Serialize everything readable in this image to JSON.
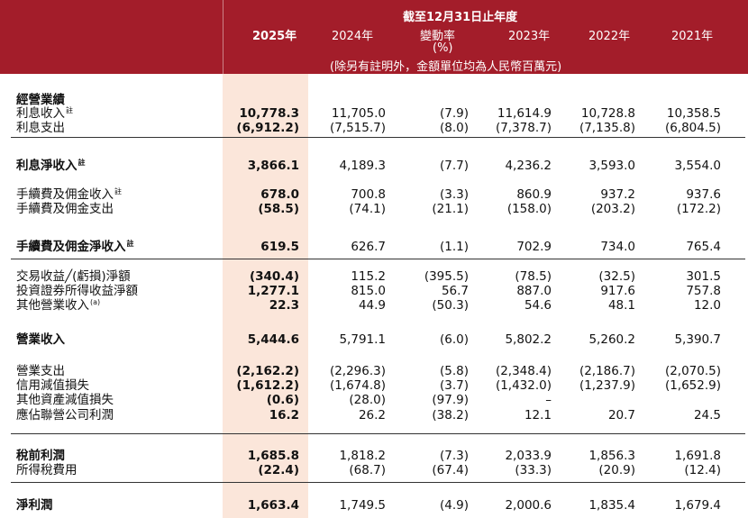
{
  "header": {
    "period_title": "截至12月31日止年度",
    "years": [
      "2025年",
      "2024年",
      "變動率",
      "2023年",
      "2022年",
      "2021年"
    ],
    "change_unit": "(%)",
    "note": "(除另有註明外，金額單位均為人民幣百萬元)"
  },
  "sections": [
    {
      "label": "經營業績",
      "bold": true,
      "header_only": true,
      "values": []
    },
    {
      "label": "利息收入",
      "note": "註",
      "bold": false,
      "values": [
        "10,778.3",
        "11,705.0",
        "(7.9)",
        "11,614.9",
        "10,728.8",
        "10,358.5"
      ]
    },
    {
      "label": "利息支出",
      "bold": false,
      "values": [
        "(6,912.2)",
        "(7,515.7)",
        "(8.0)",
        "(7,378.7)",
        "(7,135.8)",
        "(6,804.5)"
      ]
    },
    {
      "label": "利息淨收入",
      "note": "註",
      "bold": true,
      "values": [
        "3,866.1",
        "4,189.3",
        "(7.7)",
        "4,236.2",
        "3,593.0",
        "3,554.0"
      ]
    },
    {
      "label": "手續費及佣金收入",
      "note": "註",
      "bold": false,
      "values": [
        "678.0",
        "700.8",
        "(3.3)",
        "860.9",
        "937.2",
        "937.6"
      ]
    },
    {
      "label": "手續費及佣金支出",
      "bold": false,
      "values": [
        "(58.5)",
        "(74.1)",
        "(21.1)",
        "(158.0)",
        "(203.2)",
        "(172.2)"
      ]
    },
    {
      "label": "手續費及佣金淨收入",
      "note": "註",
      "bold": true,
      "values": [
        "619.5",
        "626.7",
        "(1.1)",
        "702.9",
        "734.0",
        "765.4"
      ]
    },
    {
      "label": "交易收益╱(虧損)淨額",
      "bold": false,
      "values": [
        "(340.4)",
        "115.2",
        "(395.5)",
        "(78.5)",
        "(32.5)",
        "301.5"
      ]
    },
    {
      "label": "投資證券所得收益淨額",
      "bold": false,
      "values": [
        "1,277.1",
        "815.0",
        "56.7",
        "887.0",
        "917.6",
        "757.8"
      ]
    },
    {
      "label": "其他營業收入",
      "note": "(a)",
      "bold": false,
      "values": [
        "22.3",
        "44.9",
        "(50.3)",
        "54.6",
        "48.1",
        "12.0"
      ]
    },
    {
      "label": "營業收入",
      "bold": true,
      "values": [
        "5,444.6",
        "5,791.1",
        "(6.0)",
        "5,802.2",
        "5,260.2",
        "5,390.7"
      ]
    },
    {
      "label": "營業支出",
      "bold": false,
      "values": [
        "(2,162.2)",
        "(2,296.3)",
        "(5.8)",
        "(2,348.4)",
        "(2,186.7)",
        "(2,070.5)"
      ]
    },
    {
      "label": "信用減值損失",
      "bold": false,
      "values": [
        "(1,612.2)",
        "(1,674.8)",
        "(3.7)",
        "(1,432.0)",
        "(1,237.9)",
        "(1,652.9)"
      ]
    },
    {
      "label": "其他資產減值損失",
      "bold": false,
      "values": [
        "(0.6)",
        "(28.0)",
        "(97.9)",
        "–",
        "",
        ""
      ]
    },
    {
      "label": "應佔聯營公司利潤",
      "bold": false,
      "values": [
        "16.2",
        "26.2",
        "(38.2)",
        "12.1",
        "20.7",
        "24.5"
      ]
    },
    {
      "label": "稅前利潤",
      "bold": true,
      "values": [
        "1,685.8",
        "1,818.2",
        "(7.3)",
        "2,033.9",
        "1,856.3",
        "1,691.8"
      ]
    },
    {
      "label": "所得稅費用",
      "bold": false,
      "values": [
        "(22.4)",
        "(68.7)",
        "(67.4)",
        "(33.3)",
        "(20.9)",
        "(12.4)"
      ]
    },
    {
      "label": "淨利潤",
      "bold": true,
      "values": [
        "1,663.4",
        "1,749.5",
        "(4.9)",
        "2,000.6",
        "1,835.4",
        "1,679.4"
      ]
    }
  ],
  "colors": {
    "header_bg": "#a31d2a",
    "highlight_band": "#fbe6da",
    "text": "#111111"
  }
}
